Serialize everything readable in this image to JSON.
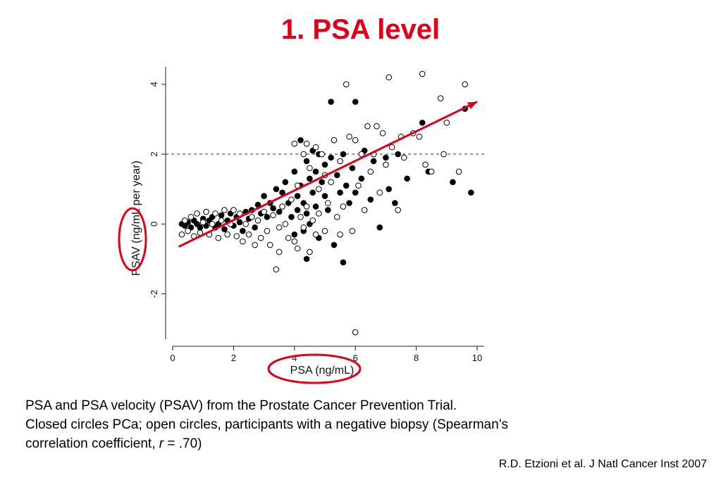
{
  "slide": {
    "title": "1. PSA level",
    "caption_line1": "PSA and PSA velocity (PSAV) from the Prostate Cancer Prevention Trial.",
    "caption_line2": "Closed circles PCa; open circles, participants with a negative biopsy  (Spearman’s",
    "caption_line3_prefix": "correlation coefficient, ",
    "caption_line3_italic": "r",
    "caption_line3_suffix": " = .70)",
    "citation": "R.D. Etzioni  et al. J Natl Cancer Inst 2007",
    "highlight_color": "#e0001a"
  },
  "chart_data": {
    "type": "scatter",
    "title": "",
    "xlabel": "PSA (ng/mL)",
    "ylabel": "PSAV (ng/mL per year)",
    "xlim": [
      0,
      10
    ],
    "ylim": [
      -3.3,
      4.5
    ],
    "xticks": [
      0,
      2,
      4,
      6,
      8,
      10
    ],
    "yticks": [
      -2,
      0,
      2,
      4
    ],
    "grid": false,
    "threshold_line": {
      "y": 2,
      "style": "dashed"
    },
    "trend_arrow": {
      "from": [
        0.2,
        -0.65
      ],
      "to": [
        10.0,
        3.5
      ],
      "color": "#e0001a"
    },
    "series": [
      {
        "marker": "closed-circle",
        "color": "#000000",
        "points": [
          [
            0.3,
            0.0
          ],
          [
            0.4,
            -0.05
          ],
          [
            0.5,
            0.05
          ],
          [
            0.6,
            -0.1
          ],
          [
            0.7,
            0.1
          ],
          [
            0.8,
            0.0
          ],
          [
            0.9,
            -0.1
          ],
          [
            1.0,
            0.15
          ],
          [
            1.1,
            -0.05
          ],
          [
            1.2,
            0.1
          ],
          [
            1.3,
            0.2
          ],
          [
            1.4,
            -0.1
          ],
          [
            1.5,
            0.0
          ],
          [
            1.6,
            0.25
          ],
          [
            1.7,
            -0.15
          ],
          [
            1.8,
            0.1
          ],
          [
            1.9,
            0.3
          ],
          [
            2.0,
            -0.05
          ],
          [
            2.1,
            0.2
          ],
          [
            2.2,
            0.05
          ],
          [
            2.3,
            -0.2
          ],
          [
            2.4,
            0.35
          ],
          [
            2.5,
            0.15
          ],
          [
            2.6,
            0.4
          ],
          [
            2.7,
            -0.1
          ],
          [
            2.8,
            0.55
          ],
          [
            2.9,
            0.3
          ],
          [
            3.0,
            0.8
          ],
          [
            3.1,
            0.2
          ],
          [
            3.2,
            0.6
          ],
          [
            3.3,
            0.45
          ],
          [
            3.4,
            1.0
          ],
          [
            3.5,
            0.35
          ],
          [
            3.6,
            0.9
          ],
          [
            3.7,
            1.2
          ],
          [
            3.8,
            0.6
          ],
          [
            3.9,
            0.2
          ],
          [
            4.0,
            1.5
          ],
          [
            4.0,
            -0.3
          ],
          [
            4.1,
            0.8
          ],
          [
            4.1,
            0.4
          ],
          [
            4.2,
            2.4
          ],
          [
            4.2,
            1.1
          ],
          [
            4.3,
            -0.2
          ],
          [
            4.3,
            0.6
          ],
          [
            4.4,
            1.8
          ],
          [
            4.4,
            0.3
          ],
          [
            4.4,
            -1.0
          ],
          [
            4.5,
            1.3
          ],
          [
            4.5,
            0.0
          ],
          [
            4.6,
            2.1
          ],
          [
            4.6,
            0.9
          ],
          [
            4.7,
            1.5
          ],
          [
            4.7,
            0.5
          ],
          [
            4.8,
            2.0
          ],
          [
            4.8,
            -0.4
          ],
          [
            4.9,
            1.2
          ],
          [
            5.0,
            0.8
          ],
          [
            5.0,
            1.7
          ],
          [
            5.1,
            0.4
          ],
          [
            5.2,
            1.9
          ],
          [
            5.2,
            3.5
          ],
          [
            5.3,
            -0.6
          ],
          [
            5.4,
            1.4
          ],
          [
            5.5,
            0.9
          ],
          [
            5.6,
            -1.1
          ],
          [
            5.6,
            2.0
          ],
          [
            5.7,
            1.1
          ],
          [
            5.8,
            0.6
          ],
          [
            5.9,
            1.6
          ],
          [
            6.0,
            3.5
          ],
          [
            6.0,
            0.9
          ],
          [
            6.2,
            1.3
          ],
          [
            6.3,
            2.1
          ],
          [
            6.5,
            0.7
          ],
          [
            6.6,
            1.8
          ],
          [
            6.8,
            -0.1
          ],
          [
            7.0,
            1.9
          ],
          [
            7.1,
            1.0
          ],
          [
            7.3,
            0.6
          ],
          [
            7.4,
            2.0
          ],
          [
            7.7,
            1.3
          ],
          [
            8.2,
            2.9
          ],
          [
            8.4,
            1.5
          ],
          [
            9.2,
            1.2
          ],
          [
            9.6,
            3.3
          ],
          [
            9.8,
            0.9
          ]
        ]
      },
      {
        "marker": "open-circle",
        "color": "#000000",
        "points": [
          [
            0.3,
            -0.3
          ],
          [
            0.4,
            0.1
          ],
          [
            0.5,
            -0.2
          ],
          [
            0.6,
            0.2
          ],
          [
            0.7,
            -0.35
          ],
          [
            0.8,
            0.3
          ],
          [
            0.9,
            -0.25
          ],
          [
            1.0,
            0.05
          ],
          [
            1.1,
            0.35
          ],
          [
            1.2,
            -0.3
          ],
          [
            1.3,
            0.0
          ],
          [
            1.4,
            0.3
          ],
          [
            1.5,
            -0.4
          ],
          [
            1.6,
            0.1
          ],
          [
            1.7,
            0.4
          ],
          [
            1.8,
            -0.3
          ],
          [
            1.9,
            0.0
          ],
          [
            2.0,
            0.4
          ],
          [
            2.1,
            -0.35
          ],
          [
            2.2,
            0.3
          ],
          [
            2.3,
            -0.5
          ],
          [
            2.4,
            0.0
          ],
          [
            2.5,
            -0.3
          ],
          [
            2.6,
            0.2
          ],
          [
            2.7,
            -0.6
          ],
          [
            2.8,
            0.1
          ],
          [
            2.9,
            -0.4
          ],
          [
            3.0,
            0.35
          ],
          [
            3.1,
            -0.2
          ],
          [
            3.2,
            -0.6
          ],
          [
            3.3,
            0.25
          ],
          [
            3.4,
            -1.3
          ],
          [
            3.5,
            -0.1
          ],
          [
            3.5,
            -0.8
          ],
          [
            3.6,
            0.5
          ],
          [
            3.7,
            0.0
          ],
          [
            3.8,
            -0.4
          ],
          [
            3.9,
            0.7
          ],
          [
            4.0,
            2.3
          ],
          [
            4.0,
            -0.5
          ],
          [
            4.1,
            1.1
          ],
          [
            4.1,
            -0.7
          ],
          [
            4.2,
            0.2
          ],
          [
            4.3,
            2.0
          ],
          [
            4.3,
            -0.1
          ],
          [
            4.4,
            2.3
          ],
          [
            4.4,
            0.5
          ],
          [
            4.5,
            -0.8
          ],
          [
            4.5,
            1.6
          ],
          [
            4.6,
            0.1
          ],
          [
            4.7,
            2.2
          ],
          [
            4.7,
            -0.3
          ],
          [
            4.8,
            1.0
          ],
          [
            4.8,
            0.3
          ],
          [
            4.9,
            2.0
          ],
          [
            5.0,
            -0.2
          ],
          [
            5.0,
            1.4
          ],
          [
            5.1,
            0.6
          ],
          [
            5.2,
            1.2
          ],
          [
            5.3,
            2.4
          ],
          [
            5.4,
            0.2
          ],
          [
            5.5,
            -0.3
          ],
          [
            5.5,
            1.8
          ],
          [
            5.6,
            0.5
          ],
          [
            5.7,
            4.0
          ],
          [
            5.8,
            2.5
          ],
          [
            5.9,
            -0.2
          ],
          [
            6.0,
            2.4
          ],
          [
            6.0,
            -3.1
          ],
          [
            6.1,
            1.1
          ],
          [
            6.2,
            2.0
          ],
          [
            6.3,
            0.4
          ],
          [
            6.4,
            2.8
          ],
          [
            6.5,
            1.5
          ],
          [
            6.6,
            2.0
          ],
          [
            6.7,
            2.8
          ],
          [
            6.8,
            0.9
          ],
          [
            6.9,
            2.6
          ],
          [
            7.0,
            1.7
          ],
          [
            7.1,
            4.2
          ],
          [
            7.2,
            2.2
          ],
          [
            7.4,
            0.4
          ],
          [
            7.5,
            2.5
          ],
          [
            7.6,
            1.9
          ],
          [
            7.9,
            2.6
          ],
          [
            8.1,
            2.5
          ],
          [
            8.2,
            4.3
          ],
          [
            8.3,
            1.7
          ],
          [
            8.5,
            1.5
          ],
          [
            8.8,
            3.6
          ],
          [
            8.9,
            2.0
          ],
          [
            9.0,
            2.9
          ],
          [
            9.4,
            1.5
          ],
          [
            9.6,
            4.0
          ]
        ]
      }
    ]
  }
}
